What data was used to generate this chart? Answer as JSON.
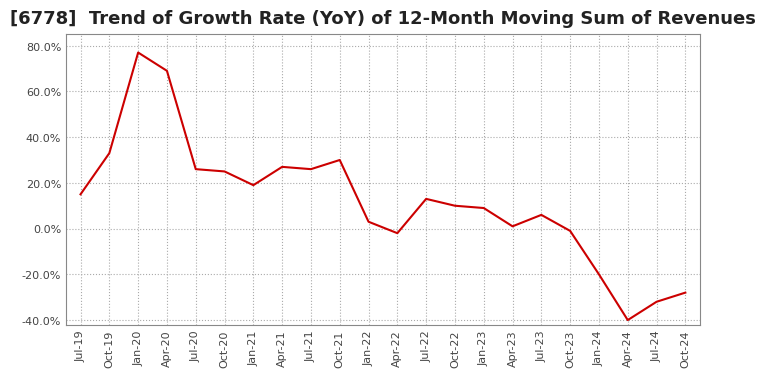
{
  "title": "[6778]  Trend of Growth Rate (YoY) of 12-Month Moving Sum of Revenues",
  "title_fontsize": 13,
  "line_color": "#cc0000",
  "background_color": "#ffffff",
  "grid_color": "#aaaaaa",
  "ylim": [
    -42,
    85
  ],
  "yticks": [
    -40,
    -20,
    0,
    20,
    40,
    60,
    80
  ],
  "x_labels": [
    "Jul-19",
    "Oct-19",
    "Jan-20",
    "Apr-20",
    "Jul-20",
    "Oct-20",
    "Jan-21",
    "Apr-21",
    "Jul-21",
    "Oct-21",
    "Jan-22",
    "Apr-22",
    "Jul-22",
    "Oct-22",
    "Jan-23",
    "Apr-23",
    "Jul-23",
    "Oct-23",
    "Jan-24",
    "Apr-24",
    "Jul-24",
    "Oct-24"
  ],
  "y_values": [
    15,
    33,
    77,
    69,
    26,
    25,
    19,
    27,
    26,
    30,
    3,
    -2,
    13,
    10,
    9,
    1,
    6,
    -1,
    -20,
    -40,
    -32,
    -28
  ]
}
